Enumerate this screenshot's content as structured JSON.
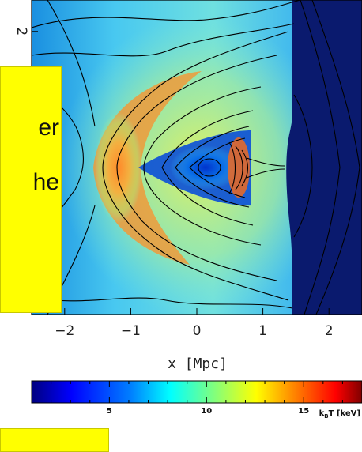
{
  "chart_data": {
    "type": "heatmap",
    "title": "",
    "xlabel": "x [Mpc]",
    "ylabel": "",
    "x_ticks": [
      -2,
      -1,
      0,
      1,
      2
    ],
    "x_tick_labels": [
      "−2",
      "−1",
      "0",
      "1",
      "2"
    ],
    "xlim": [
      -2.5,
      2.5
    ],
    "y_ticks": [
      2
    ],
    "y_tick_labels": [
      "2"
    ],
    "ylim": [
      -2.5,
      2.5
    ],
    "colorbar": {
      "label": "k_BT [keV]",
      "label_main": "k",
      "label_sub": "B",
      "label_rest": "T [keV]",
      "ticks": [
        5,
        10,
        15
      ],
      "tick_labels": [
        "5",
        "10",
        "15"
      ],
      "range": [
        1,
        18
      ],
      "colormap": [
        "#00007f",
        "#0000ff",
        "#007fff",
        "#00ffff",
        "#7fff7f",
        "#ffff00",
        "#ff7f00",
        "#ff0000",
        "#7f0000"
      ]
    },
    "features": {
      "bow_shock_x": 1.45,
      "cold_front_x": 0.65,
      "hot_arc_x": -1.1
    }
  },
  "annotations": {
    "box1_line1": "er",
    "box1_line2": "he",
    "box2_text": ""
  },
  "colors": {
    "highlight": "#ffff00",
    "preshock": "#0a1a6e"
  }
}
